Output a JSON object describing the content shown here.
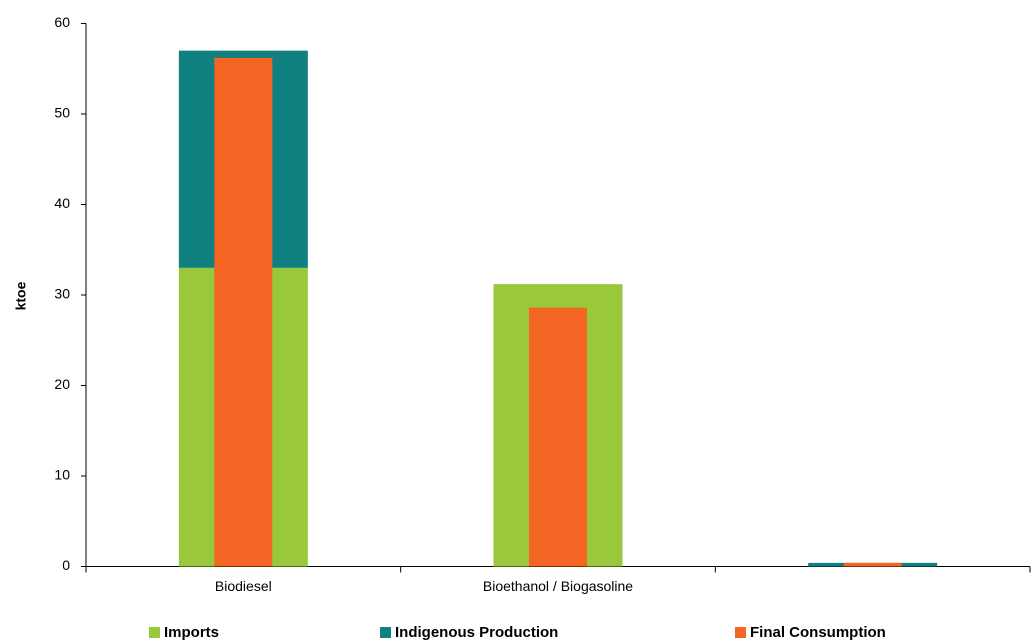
{
  "chart_data": {
    "type": "bar",
    "title": "",
    "ylabel": "ktoe",
    "xlabel": "",
    "ylim": [
      0,
      60
    ],
    "yticks": [
      0,
      10,
      20,
      30,
      40,
      50,
      60
    ],
    "categories": [
      "Biodiesel",
      "Bioethanol / Biogasoline",
      ""
    ],
    "stacked_series": [
      {
        "name": "Imports",
        "color": "#99c93b",
        "values": [
          33,
          31.2,
          0
        ]
      },
      {
        "name": "Indigenous Production",
        "color": "#108080",
        "values": [
          24,
          0,
          0.4
        ]
      }
    ],
    "overlay_series": [
      {
        "name": "Final Consumption",
        "color": "#f26522",
        "values": [
          56.2,
          28.6,
          0.4
        ]
      }
    ],
    "legend_position": "bottom",
    "grid": false
  }
}
